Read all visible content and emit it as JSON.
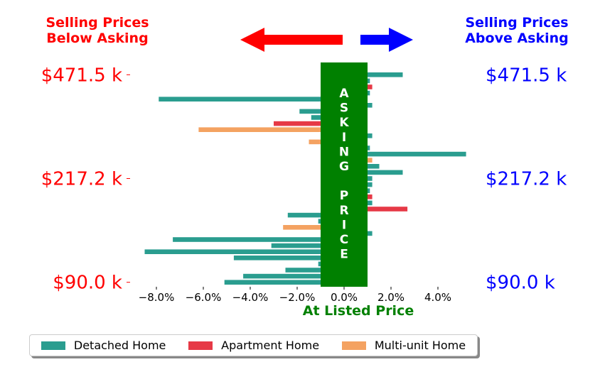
{
  "chart_data": {
    "type": "bar",
    "orientation": "horizontal",
    "left_header": "Selling Prices\nBelow Asking",
    "right_header": "Selling Prices\nAbove Asking",
    "xlabel": "At Listed Price",
    "center_band_label": "ASKING PRICE",
    "xlim": [
      -9.0,
      5.3
    ],
    "x_ticks": [
      {
        "value": -8,
        "label": "−8.0%"
      },
      {
        "value": -6,
        "label": "−6.0%"
      },
      {
        "value": -4,
        "label": "−4.0%"
      },
      {
        "value": -2,
        "label": "−2.0%"
      },
      {
        "value": 0,
        "label": "0.0%"
      },
      {
        "value": 2,
        "label": "2.0%"
      },
      {
        "value": 4,
        "label": "4.0%"
      }
    ],
    "y_ticks": [
      "$471.5 k",
      "$217.2 k",
      "$90.0 k"
    ],
    "y_tick_rows": [
      0,
      17,
      34
    ],
    "series": [
      {
        "name": "Detached Home",
        "color": "#2a9d8f"
      },
      {
        "name": "Apartment Home",
        "color": "#e63946"
      },
      {
        "name": "Multi-unit Home",
        "color": "#f4a261"
      }
    ],
    "bars": [
      {
        "row": 0,
        "value": 2.5,
        "series": 0
      },
      {
        "row": 1,
        "value": 1.1,
        "series": 0
      },
      {
        "row": 2,
        "value": 1.2,
        "series": 1
      },
      {
        "row": 3,
        "value": 1.1,
        "series": 0
      },
      {
        "row": 4,
        "value": -7.9,
        "series": 0
      },
      {
        "row": 5,
        "value": 1.2,
        "series": 0
      },
      {
        "row": 6,
        "value": -1.9,
        "series": 0
      },
      {
        "row": 7,
        "value": -1.4,
        "series": 0
      },
      {
        "row": 8,
        "value": -3.0,
        "series": 1
      },
      {
        "row": 9,
        "value": -6.2,
        "series": 2
      },
      {
        "row": 10,
        "value": 1.2,
        "series": 0
      },
      {
        "row": 11,
        "value": -1.5,
        "series": 2
      },
      {
        "row": 12,
        "value": 1.1,
        "series": 0
      },
      {
        "row": 13,
        "value": 5.2,
        "series": 0
      },
      {
        "row": 14,
        "value": 1.2,
        "series": 2
      },
      {
        "row": 15,
        "value": 1.5,
        "series": 0
      },
      {
        "row": 16,
        "value": 2.5,
        "series": 0
      },
      {
        "row": 17,
        "value": 1.2,
        "series": 0
      },
      {
        "row": 18,
        "value": 1.2,
        "series": 0
      },
      {
        "row": 19,
        "value": 1.1,
        "series": 0
      },
      {
        "row": 20,
        "value": 1.2,
        "series": 1
      },
      {
        "row": 21,
        "value": 1.2,
        "series": 0
      },
      {
        "row": 22,
        "value": 2.7,
        "series": 1
      },
      {
        "row": 23,
        "value": -2.4,
        "series": 0
      },
      {
        "row": 24,
        "value": -1.1,
        "series": 0
      },
      {
        "row": 25,
        "value": -2.6,
        "series": 2
      },
      {
        "row": 26,
        "value": 1.2,
        "series": 0
      },
      {
        "row": 27,
        "value": -7.3,
        "series": 0
      },
      {
        "row": 28,
        "value": -3.1,
        "series": 0
      },
      {
        "row": 29,
        "value": -8.5,
        "series": 0
      },
      {
        "row": 30,
        "value": -4.7,
        "series": 0
      },
      {
        "row": 31,
        "value": -1.1,
        "series": 0
      },
      {
        "row": 32,
        "value": -2.5,
        "series": 0
      },
      {
        "row": 33,
        "value": -4.3,
        "series": 0
      },
      {
        "row": 34,
        "value": -5.1,
        "series": 0
      }
    ],
    "colors": {
      "below": "#ff0000",
      "above": "#0000ff",
      "asking_band": "#008000",
      "xlabel": "#008000"
    }
  }
}
